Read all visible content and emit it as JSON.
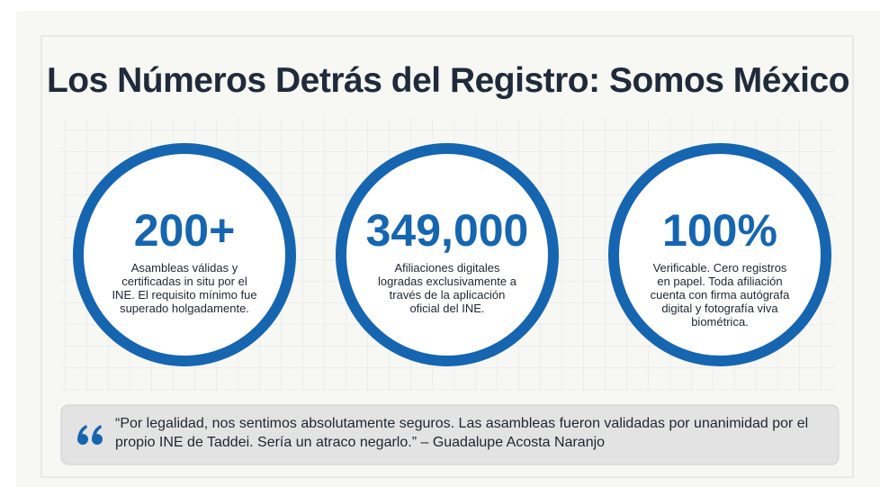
{
  "title": "Los Números Detrás del Registro: Somos México",
  "stats": [
    {
      "value": "200+",
      "description": "Asambleas válidas y certificadas in situ por el INE. El requisito mínimo fue superado holgadamente."
    },
    {
      "value": "349,000",
      "description": "Afiliaciones digitales logradas exclusivamente a través de la aplicación oficial del INE."
    },
    {
      "value": "100%",
      "description": "Verificable. Cero registros en papel. Toda afiliación cuenta con firma autógrafa digital y fotografía viva biométrica."
    }
  ],
  "quote": {
    "text": "“Por legalidad, nos sentimos absolutamente seguros. Las asambleas fueron validadas por unanimidad por el propio INE de Taddei. Sería un atraco negarlo.” – Guadalupe Acosta Naranjo"
  }
}
